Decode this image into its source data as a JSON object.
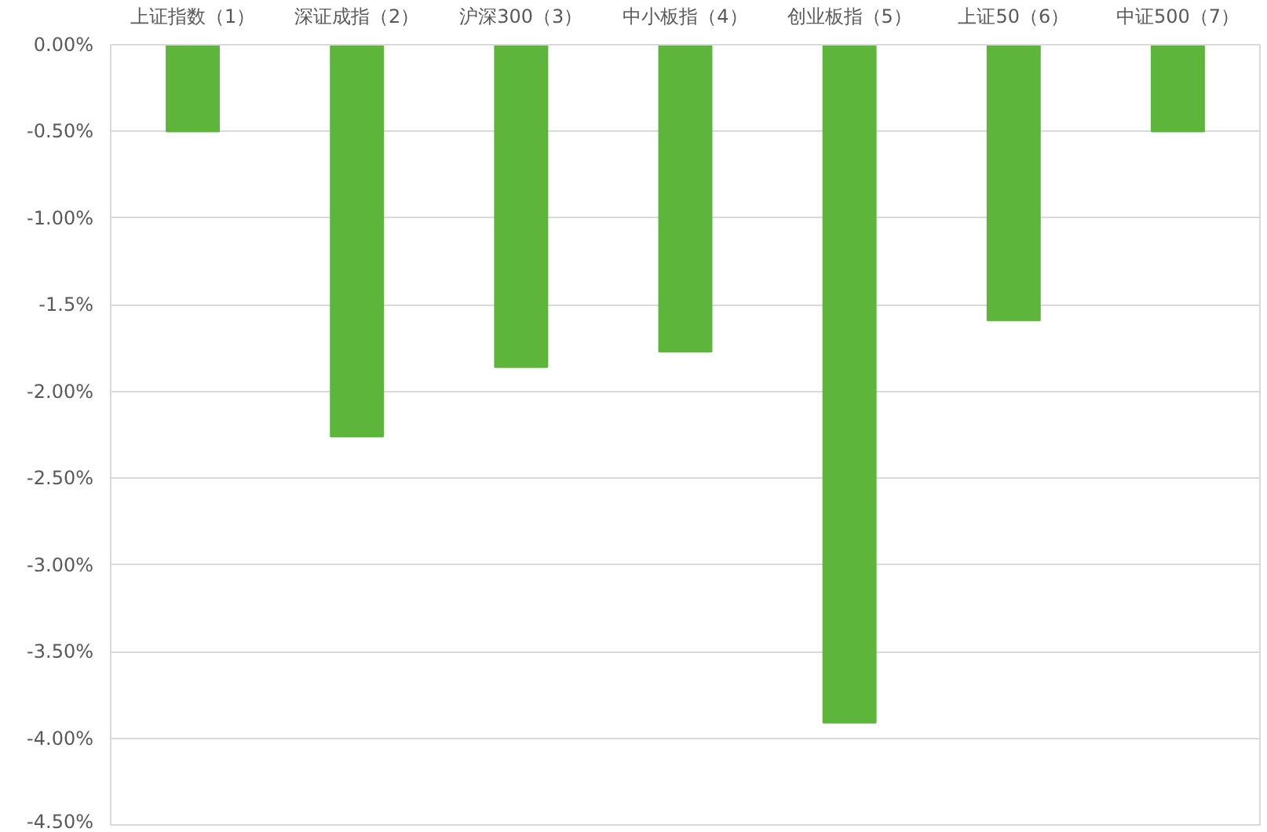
{
  "chart_data": {
    "type": "bar",
    "categories": [
      "上证指数（1）",
      "深证成指（2）",
      "沪深300（3）",
      "中小板指（4）",
      "创业板指（5）",
      "上证50（6）",
      "中证500（7）"
    ],
    "values": [
      -0.5,
      -2.26,
      -1.86,
      -1.77,
      -3.91,
      -1.59,
      -0.5
    ],
    "color": "#5db53b",
    "ylim": [
      -4.5,
      0
    ],
    "yticks": [
      {
        "value": 0,
        "label": "0.00%"
      },
      {
        "value": -0.5,
        "label": "-0.50%"
      },
      {
        "value": -1,
        "label": "-1.00%"
      },
      {
        "value": -1.5,
        "label": "-1.5%"
      },
      {
        "value": -2,
        "label": "-2.00%"
      },
      {
        "value": -2.5,
        "label": "-2.50%"
      },
      {
        "value": -3,
        "label": "-3.00%"
      },
      {
        "value": -3.5,
        "label": "-3.50%"
      },
      {
        "value": -4,
        "label": "-4.00%"
      },
      {
        "value": -4.5,
        "label": "-4.50%"
      }
    ],
    "grid": "y"
  }
}
